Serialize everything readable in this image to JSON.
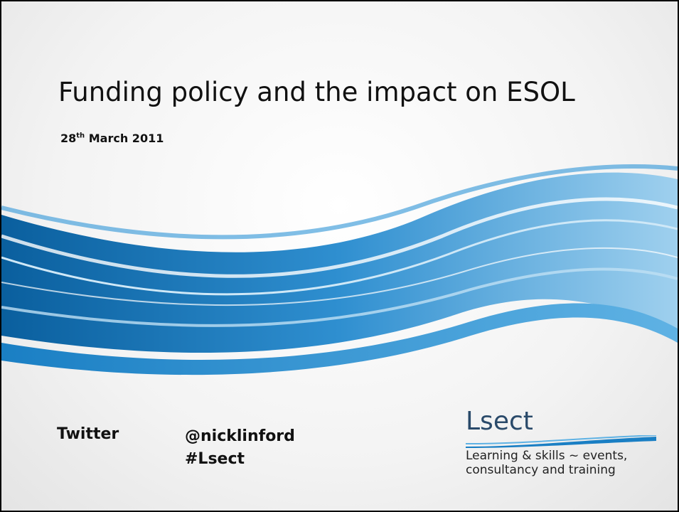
{
  "slide": {
    "title": "Funding policy and the impact on ESOL",
    "date": {
      "day": "28",
      "suffix": "th",
      "rest": "March 2011"
    },
    "contact": {
      "label": "Twitter",
      "handles": [
        "@nicklinford",
        "#Lsect"
      ]
    },
    "logo": {
      "name": "Lsect",
      "tagline": [
        "Learning & skills ~ events,",
        "consultancy and training"
      ]
    }
  }
}
